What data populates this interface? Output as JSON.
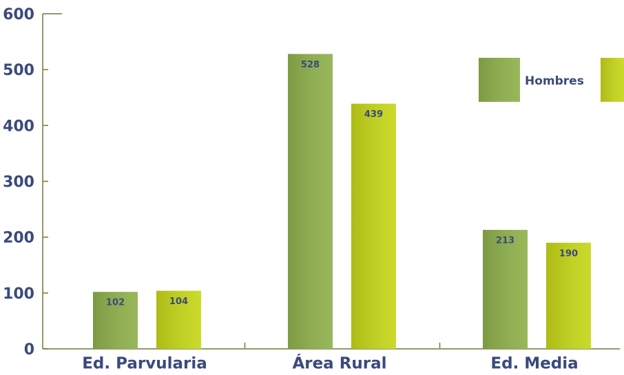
{
  "chart_data": {
    "type": "bar",
    "categories": [
      "Ed. Parvularia",
      "Área Rural",
      "Ed. Media"
    ],
    "series": [
      {
        "name": "Hombres",
        "color": "#8fb14c",
        "values": [
          102,
          528,
          213
        ]
      },
      {
        "color": "#c6d719",
        "values": [
          104,
          439,
          190
        ]
      }
    ],
    "ylim": [
      0,
      600
    ],
    "yticks": [
      0,
      100,
      200,
      300,
      400,
      500,
      600
    ],
    "legend": "upper right"
  }
}
